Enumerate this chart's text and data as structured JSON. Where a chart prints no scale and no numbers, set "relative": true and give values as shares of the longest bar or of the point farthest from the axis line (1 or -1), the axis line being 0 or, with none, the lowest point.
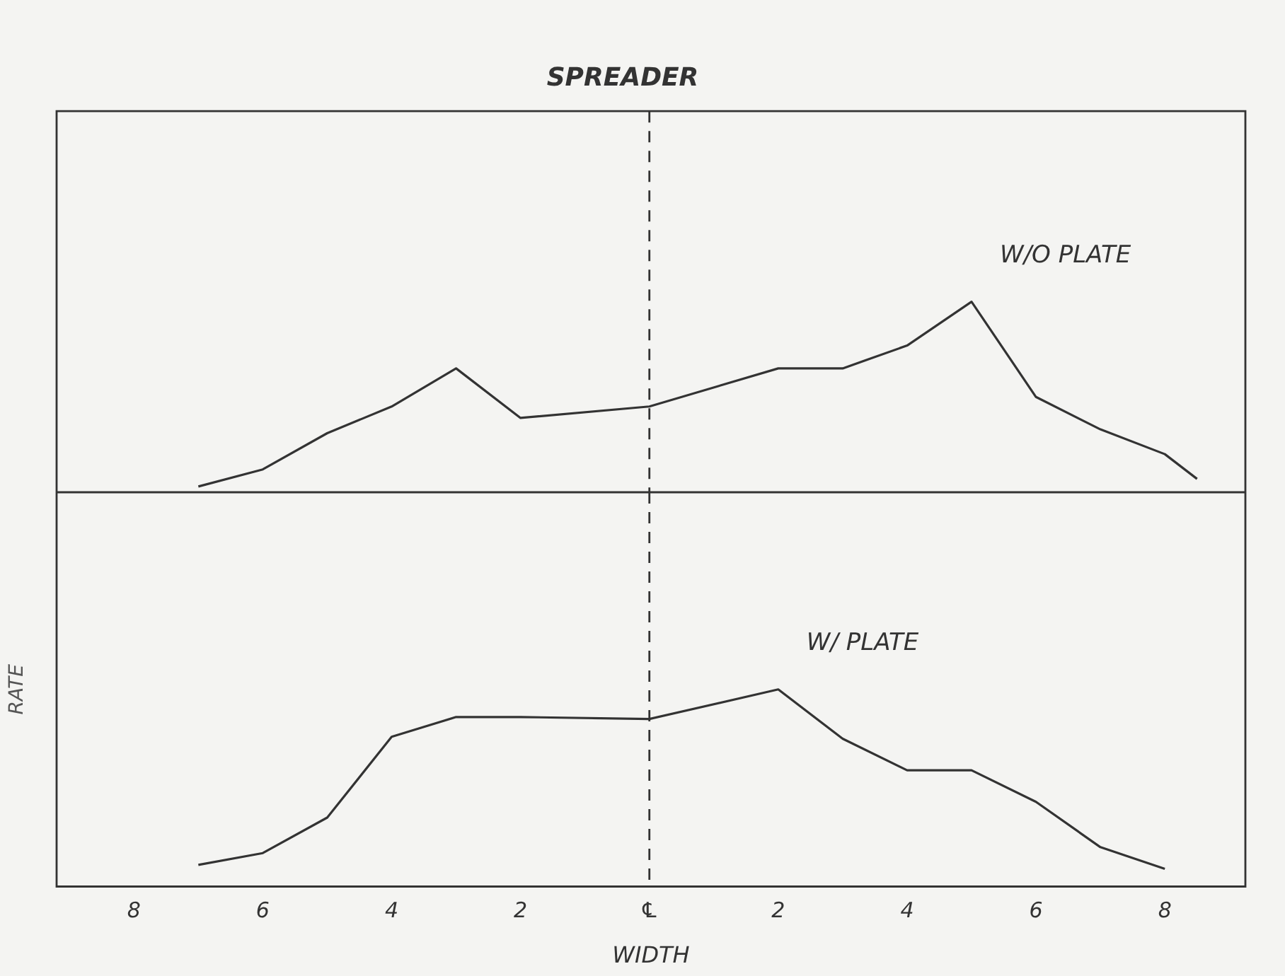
{
  "chart_data": [
    {
      "type": "line",
      "title": "SPREADER",
      "relative": true,
      "xlim": [
        -9.2,
        9.25
      ],
      "tick_labels": false,
      "grid": false,
      "legend": false,
      "marker": "none",
      "line_style": "solid",
      "ref_lines": [
        {
          "axis": "x",
          "value": 0,
          "color": "#333333",
          "line_style": "dashed"
        }
      ],
      "series": [
        {
          "name": "W/O PLATE",
          "color": "#333333",
          "x": [
            -7,
            -6,
            -5,
            -4,
            -3,
            -2,
            0,
            2,
            3,
            4,
            5,
            6,
            7,
            8,
            8.5
          ],
          "values": [
            0.03,
            0.12,
            0.31,
            0.45,
            0.65,
            0.39,
            0.45,
            0.65,
            0.65,
            0.77,
            1,
            0.5,
            0.33,
            0.2,
            0.07
          ]
        }
      ]
    },
    {
      "type": "line",
      "xlabel": "WIDTH",
      "ylabel": "RATE",
      "relative": true,
      "xlim": [
        -9.2,
        9.25
      ],
      "tick_labels": "x",
      "grid": false,
      "legend": false,
      "marker": "none",
      "line_style": "solid",
      "xticks": [
        {
          "value": -8,
          "label": "8"
        },
        {
          "value": -6,
          "label": "6"
        },
        {
          "value": -4,
          "label": "4"
        },
        {
          "value": -2,
          "label": "2"
        },
        {
          "value": 0,
          "label": "℄"
        },
        2,
        4,
        6,
        8
      ],
      "ref_lines": [
        {
          "axis": "x",
          "value": 0,
          "color": "#333333",
          "line_style": "dashed"
        }
      ],
      "series": [
        {
          "name": "W/ PLATE",
          "color": "#333333",
          "x": [
            -7,
            -6,
            -5,
            -4,
            -3,
            -2,
            0,
            2,
            3,
            4,
            5,
            6,
            7,
            8
          ],
          "values": [
            0.11,
            0.17,
            0.35,
            0.76,
            0.86,
            0.86,
            0.85,
            1,
            0.75,
            0.59,
            0.59,
            0.43,
            0.2,
            0.09
          ]
        }
      ]
    }
  ]
}
